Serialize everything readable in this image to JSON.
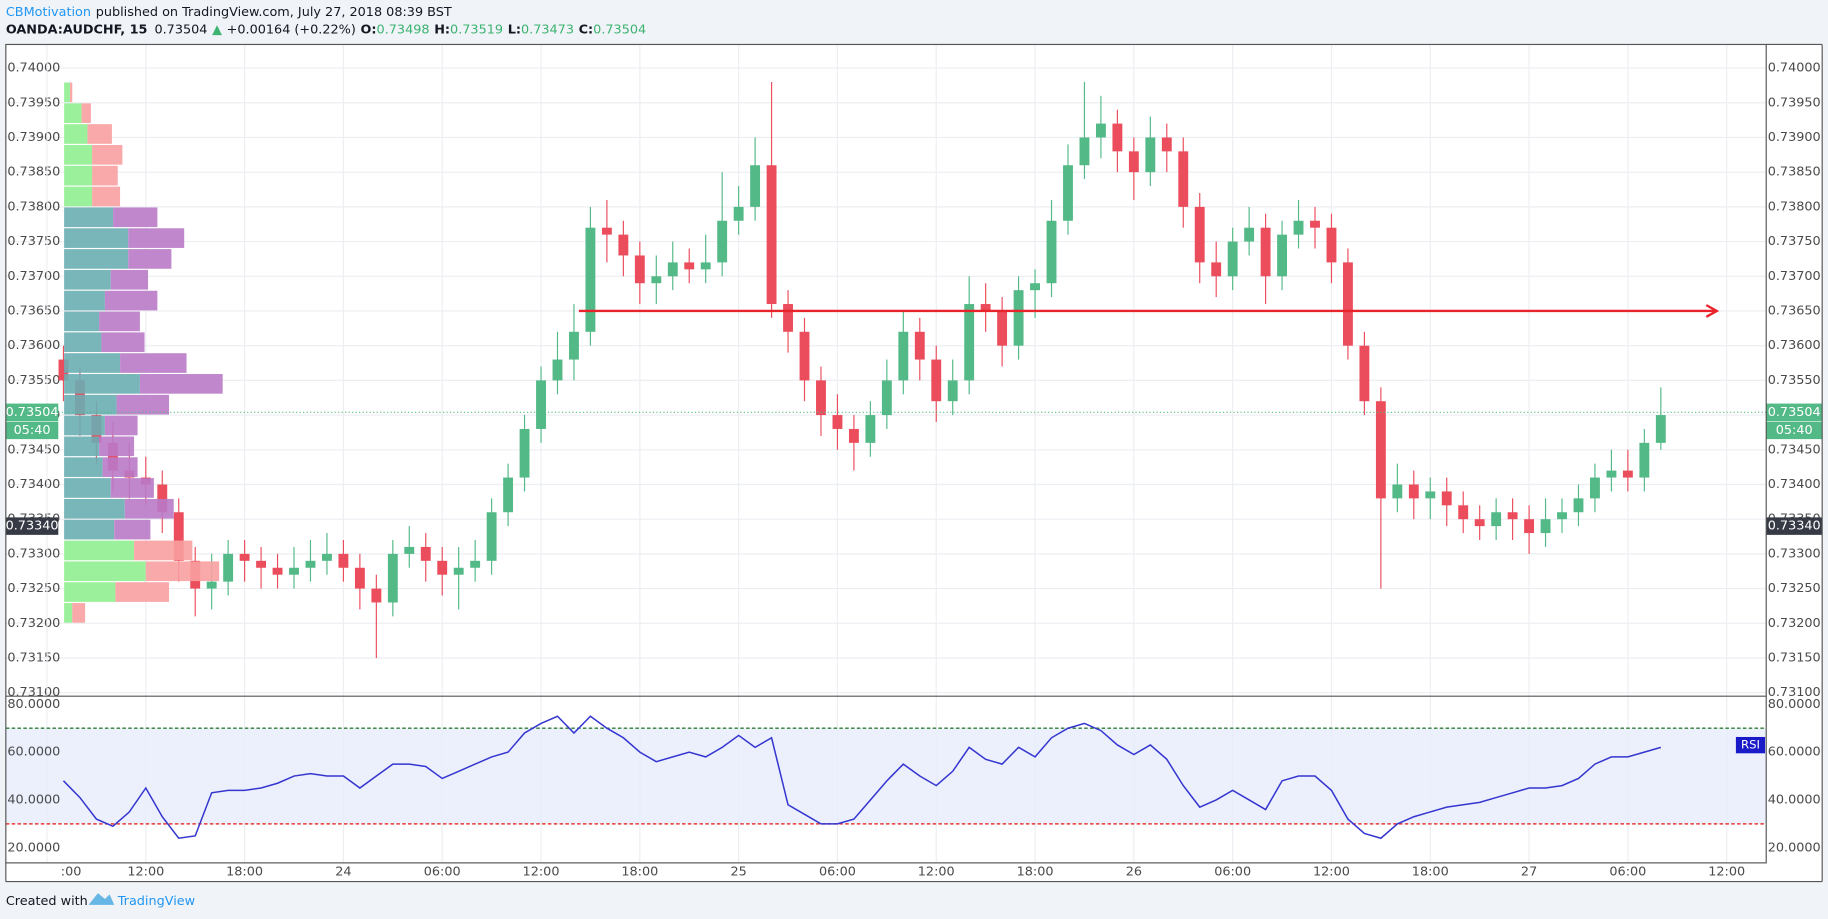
{
  "header": {
    "author": "CBMotivation",
    "published": "published on TradingView.com, July 27, 2018 08:39 BST",
    "symbol": "OANDA:AUDCHF, 15",
    "last": "0.73504",
    "arrow": "▲",
    "change": "+0.00164 (+0.22%)",
    "legend": [
      {
        "key": "O:",
        "value": "0.73498"
      },
      {
        "key": "H:",
        "value": "0.73519"
      },
      {
        "key": "L:",
        "value": "0.73473"
      },
      {
        "key": "C:",
        "value": "0.73504"
      }
    ]
  },
  "footer": {
    "created": "Created with",
    "brand": "TradingView"
  },
  "chart_data": [
    {
      "type": "candlestick",
      "up_color": "#53b987",
      "down_color": "#eb4d5c",
      "grid": true,
      "xlim": [
        -3.5,
        103.4
      ],
      "xticks": [
        {
          "value": -1,
          "label": ":00"
        },
        {
          "value": 5,
          "label": "12:00"
        },
        {
          "value": 11,
          "label": "18:00"
        },
        {
          "value": 17,
          "label": "24"
        },
        {
          "value": 23,
          "label": "06:00"
        },
        {
          "value": 29,
          "label": "12:00"
        },
        {
          "value": 35,
          "label": "18:00"
        },
        {
          "value": 41,
          "label": "25"
        },
        {
          "value": 47,
          "label": "06:00"
        },
        {
          "value": 53,
          "label": "12:00"
        },
        {
          "value": 59,
          "label": "18:00"
        },
        {
          "value": 65,
          "label": "26"
        },
        {
          "value": 71,
          "label": "06:00"
        },
        {
          "value": 77,
          "label": "12:00"
        },
        {
          "value": 83,
          "label": "18:00"
        },
        {
          "value": 89,
          "label": "27"
        },
        {
          "value": 95,
          "label": "06:00"
        },
        {
          "value": 101,
          "label": "12:00"
        }
      ],
      "ylim": [
        0.73095,
        0.74034
      ],
      "yticks": [
        {
          "value": 0.731,
          "label": "0.73100"
        },
        {
          "value": 0.7315,
          "label": "0.73150"
        },
        {
          "value": 0.732,
          "label": "0.73200"
        },
        {
          "value": 0.7325,
          "label": "0.73250"
        },
        {
          "value": 0.733,
          "label": "0.73300"
        },
        {
          "value": 0.7335,
          "label": "0.73350"
        },
        {
          "value": 0.734,
          "label": "0.73400"
        },
        {
          "value": 0.7345,
          "label": "0.73450"
        },
        {
          "value": 0.735,
          "label": "0.73500"
        },
        {
          "value": 0.7355,
          "label": "0.73550"
        },
        {
          "value": 0.736,
          "label": "0.73600"
        },
        {
          "value": 0.7365,
          "label": "0.73650"
        },
        {
          "value": 0.737,
          "label": "0.73700"
        },
        {
          "value": 0.7375,
          "label": "0.73750"
        },
        {
          "value": 0.738,
          "label": "0.73800"
        },
        {
          "value": 0.7385,
          "label": "0.73850"
        },
        {
          "value": 0.739,
          "label": "0.73900"
        },
        {
          "value": 0.7395,
          "label": "0.73950"
        },
        {
          "value": 0.74,
          "label": "0.74000"
        }
      ],
      "ohlc": [
        [
          0.7358,
          0.736,
          0.7352,
          0.7355
        ],
        [
          0.7355,
          0.7357,
          0.7347,
          0.735
        ],
        [
          0.735,
          0.7352,
          0.7343,
          0.7346
        ],
        [
          0.7346,
          0.7349,
          0.7339,
          0.7342
        ],
        [
          0.7342,
          0.7346,
          0.7338,
          0.7341
        ],
        [
          0.7341,
          0.7344,
          0.7337,
          0.734
        ],
        [
          0.734,
          0.7342,
          0.7333,
          0.7336
        ],
        [
          0.7336,
          0.7338,
          0.7326,
          0.7329
        ],
        [
          0.7329,
          0.7331,
          0.7321,
          0.7325
        ],
        [
          0.7325,
          0.733,
          0.7322,
          0.7326
        ],
        [
          0.7326,
          0.7332,
          0.7324,
          0.733
        ],
        [
          0.733,
          0.7332,
          0.7326,
          0.7329
        ],
        [
          0.7329,
          0.7331,
          0.7325,
          0.7328
        ],
        [
          0.7328,
          0.733,
          0.7325,
          0.7327
        ],
        [
          0.7327,
          0.7331,
          0.7325,
          0.7328
        ],
        [
          0.7328,
          0.7332,
          0.7326,
          0.7329
        ],
        [
          0.7329,
          0.7333,
          0.7327,
          0.733
        ],
        [
          0.733,
          0.7332,
          0.7326,
          0.7328
        ],
        [
          0.7328,
          0.733,
          0.7322,
          0.7325
        ],
        [
          0.7325,
          0.7327,
          0.7315,
          0.7323
        ],
        [
          0.7323,
          0.7332,
          0.7321,
          0.733
        ],
        [
          0.733,
          0.7334,
          0.7328,
          0.7331
        ],
        [
          0.7331,
          0.7333,
          0.7326,
          0.7329
        ],
        [
          0.7329,
          0.7331,
          0.7324,
          0.7327
        ],
        [
          0.7327,
          0.7331,
          0.7322,
          0.7328
        ],
        [
          0.7328,
          0.7332,
          0.7326,
          0.7329
        ],
        [
          0.7329,
          0.7338,
          0.7327,
          0.7336
        ],
        [
          0.7336,
          0.7343,
          0.7334,
          0.7341
        ],
        [
          0.7341,
          0.735,
          0.7339,
          0.7348
        ],
        [
          0.7348,
          0.7357,
          0.7346,
          0.7355
        ],
        [
          0.7355,
          0.7362,
          0.7353,
          0.7358
        ],
        [
          0.7358,
          0.7366,
          0.7355,
          0.7362
        ],
        [
          0.7362,
          0.738,
          0.736,
          0.7377
        ],
        [
          0.7377,
          0.7381,
          0.7372,
          0.7376
        ],
        [
          0.7376,
          0.7378,
          0.737,
          0.7373
        ],
        [
          0.7373,
          0.7375,
          0.7366,
          0.7369
        ],
        [
          0.7369,
          0.7373,
          0.7366,
          0.737
        ],
        [
          0.737,
          0.7375,
          0.7368,
          0.7372
        ],
        [
          0.7372,
          0.7374,
          0.7369,
          0.7371
        ],
        [
          0.7371,
          0.7376,
          0.7369,
          0.7372
        ],
        [
          0.7372,
          0.7385,
          0.737,
          0.7378
        ],
        [
          0.7378,
          0.7383,
          0.7376,
          0.738
        ],
        [
          0.738,
          0.739,
          0.7378,
          0.7386
        ],
        [
          0.7386,
          0.7398,
          0.7364,
          0.7366
        ],
        [
          0.7366,
          0.7368,
          0.7359,
          0.7362
        ],
        [
          0.7362,
          0.7364,
          0.7352,
          0.7355
        ],
        [
          0.7355,
          0.7357,
          0.7347,
          0.735
        ],
        [
          0.735,
          0.7353,
          0.7345,
          0.7348
        ],
        [
          0.7348,
          0.735,
          0.7342,
          0.7346
        ],
        [
          0.7346,
          0.7352,
          0.7344,
          0.735
        ],
        [
          0.735,
          0.7358,
          0.7348,
          0.7355
        ],
        [
          0.7355,
          0.7365,
          0.7353,
          0.7362
        ],
        [
          0.7362,
          0.7364,
          0.7355,
          0.7358
        ],
        [
          0.7358,
          0.736,
          0.7349,
          0.7352
        ],
        [
          0.7352,
          0.7358,
          0.735,
          0.7355
        ],
        [
          0.7355,
          0.737,
          0.7353,
          0.7366
        ],
        [
          0.7366,
          0.7369,
          0.7362,
          0.7365
        ],
        [
          0.7365,
          0.7367,
          0.7357,
          0.736
        ],
        [
          0.736,
          0.737,
          0.7358,
          0.7368
        ],
        [
          0.7368,
          0.7371,
          0.7364,
          0.7369
        ],
        [
          0.7369,
          0.7381,
          0.7367,
          0.7378
        ],
        [
          0.7378,
          0.7389,
          0.7376,
          0.7386
        ],
        [
          0.7386,
          0.7398,
          0.7384,
          0.739
        ],
        [
          0.739,
          0.7396,
          0.7387,
          0.7392
        ],
        [
          0.7392,
          0.7394,
          0.7385,
          0.7388
        ],
        [
          0.7388,
          0.739,
          0.7381,
          0.7385
        ],
        [
          0.7385,
          0.7393,
          0.7383,
          0.739
        ],
        [
          0.739,
          0.7392,
          0.7385,
          0.7388
        ],
        [
          0.7388,
          0.739,
          0.7377,
          0.738
        ],
        [
          0.738,
          0.7382,
          0.7369,
          0.7372
        ],
        [
          0.7372,
          0.7375,
          0.7367,
          0.737
        ],
        [
          0.737,
          0.7377,
          0.7368,
          0.7375
        ],
        [
          0.7375,
          0.738,
          0.7373,
          0.7377
        ],
        [
          0.7377,
          0.7379,
          0.7366,
          0.737
        ],
        [
          0.737,
          0.7378,
          0.7368,
          0.7376
        ],
        [
          0.7376,
          0.7381,
          0.7374,
          0.7378
        ],
        [
          0.7378,
          0.738,
          0.7374,
          0.7377
        ],
        [
          0.7377,
          0.7379,
          0.7369,
          0.7372
        ],
        [
          0.7372,
          0.7374,
          0.7358,
          0.736
        ],
        [
          0.736,
          0.7362,
          0.735,
          0.7352
        ],
        [
          0.7352,
          0.7354,
          0.7325,
          0.7338
        ],
        [
          0.7338,
          0.7343,
          0.7336,
          0.734
        ],
        [
          0.734,
          0.7342,
          0.7335,
          0.7338
        ],
        [
          0.7338,
          0.7341,
          0.7335,
          0.7339
        ],
        [
          0.7339,
          0.7341,
          0.7334,
          0.7337
        ],
        [
          0.7337,
          0.7339,
          0.7333,
          0.7335
        ],
        [
          0.7335,
          0.7337,
          0.7332,
          0.7334
        ],
        [
          0.7334,
          0.7338,
          0.7332,
          0.7336
        ],
        [
          0.7336,
          0.7338,
          0.7332,
          0.7335
        ],
        [
          0.7335,
          0.7337,
          0.733,
          0.7333
        ],
        [
          0.7333,
          0.7338,
          0.7331,
          0.7335
        ],
        [
          0.7335,
          0.7338,
          0.7333,
          0.7336
        ],
        [
          0.7336,
          0.734,
          0.7334,
          0.7338
        ],
        [
          0.7338,
          0.7343,
          0.7336,
          0.7341
        ],
        [
          0.7341,
          0.7345,
          0.7339,
          0.7342
        ],
        [
          0.7342,
          0.7345,
          0.7339,
          0.7341
        ],
        [
          0.7341,
          0.7348,
          0.7339,
          0.7346
        ],
        [
          0.7346,
          0.7354,
          0.7345,
          0.735
        ]
      ],
      "profile": {
        "bins": [
          0.7398,
          0.7395,
          0.7392,
          0.7389,
          0.7386,
          0.7383,
          0.738,
          0.7377,
          0.7374,
          0.7371,
          0.7368,
          0.7365,
          0.7362,
          0.7359,
          0.7356,
          0.7353,
          0.735,
          0.7347,
          0.7344,
          0.7341,
          0.7338,
          0.7335,
          0.7332,
          0.7329,
          0.7326,
          0.7323,
          0.732
        ],
        "up": [
          5,
          15,
          20,
          24,
          24,
          24,
          42,
          55,
          55,
          40,
          35,
          30,
          32,
          48,
          65,
          45,
          35,
          30,
          33,
          40,
          52,
          43,
          60,
          70,
          44,
          7
        ],
        "down": [
          2,
          8,
          21,
          26,
          22,
          24,
          38,
          48,
          37,
          32,
          45,
          35,
          37,
          57,
          71,
          45,
          28,
          30,
          30,
          37,
          42,
          31,
          50,
          63,
          46,
          11
        ],
        "value_area": [
          0.7332,
          0.738
        ],
        "up_color": "#90f090",
        "down_color": "#f8a0a0",
        "va_up_color": "#6aaeb2",
        "va_down_color": "#b97ac8"
      },
      "hline": {
        "value": 0.7365,
        "from": 31.3,
        "to": 100.4,
        "color": "#e8232a"
      },
      "markers": [
        {
          "value": 0.73504,
          "label": "0.73504",
          "sub": "05:40",
          "color": "#53b987",
          "line": "dotted"
        },
        {
          "value": 0.7334,
          "label": "0.73340",
          "color": "#363a45"
        }
      ]
    },
    {
      "type": "line",
      "name": "RSI",
      "color": "#3535d0",
      "badge_color": "#1a1ac8",
      "ylim": [
        13.7,
        83.4
      ],
      "yticks": [
        {
          "value": 20,
          "label": "20.0000"
        },
        {
          "value": 40,
          "label": "40.0000"
        },
        {
          "value": 60,
          "label": "60.0000"
        },
        {
          "value": 80,
          "label": "80.0000"
        }
      ],
      "bands": [
        {
          "value": 70,
          "color": "#2e7d32"
        },
        {
          "value": 30,
          "color": "#e53935"
        }
      ],
      "band_fill": "#e6ecfb",
      "values": [
        48,
        41,
        32,
        29,
        35,
        45,
        33,
        24,
        25,
        43,
        44,
        44,
        45,
        47,
        50,
        51,
        50,
        50,
        45,
        50,
        55,
        55,
        54,
        49,
        52,
        55,
        58,
        60,
        68,
        72,
        75,
        68,
        75,
        70,
        66,
        60,
        56,
        58,
        60,
        58,
        62,
        67,
        62,
        66,
        38,
        34,
        30,
        30,
        32,
        40,
        48,
        55,
        50,
        46,
        52,
        62,
        57,
        55,
        62,
        58,
        66,
        70,
        72,
        69,
        63,
        59,
        63,
        57,
        46,
        37,
        40,
        44,
        40,
        36,
        48,
        50,
        50,
        44,
        32,
        26,
        24,
        30,
        33,
        35,
        37,
        38,
        39,
        41,
        43,
        45,
        45,
        46,
        49,
        55,
        58,
        58,
        60,
        62
      ]
    }
  ]
}
